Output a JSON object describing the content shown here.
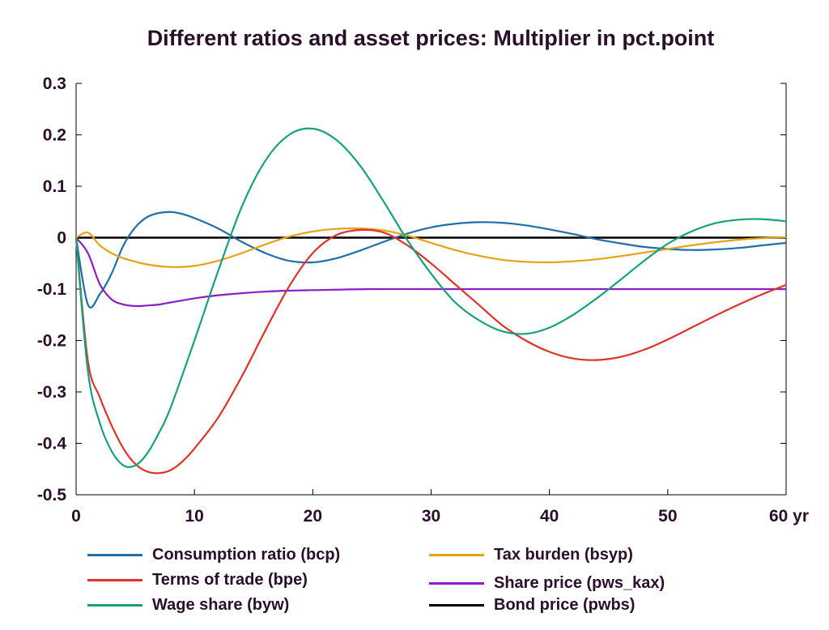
{
  "chart_data": {
    "type": "line",
    "title": "Different ratios and asset prices: Multiplier in pct.point",
    "xlabel": "",
    "ylabel": "",
    "xlim": [
      0,
      60
    ],
    "ylim": [
      -0.5,
      0.3
    ],
    "x_ticks": [
      0,
      10,
      20,
      30,
      40,
      50,
      60
    ],
    "x_tick_labels": [
      "0",
      "10",
      "20",
      "30",
      "40",
      "50",
      "60 yr"
    ],
    "y_ticks": [
      0.3,
      0.2,
      0.1,
      0,
      -0.1,
      -0.2,
      -0.3,
      -0.4,
      -0.5
    ],
    "y_tick_labels": [
      "0.3",
      "0.2",
      "0.1",
      "0",
      "-0.1",
      "-0.2",
      "-0.3",
      "-0.4",
      "-0.5"
    ],
    "grid": false,
    "legend_placement": "bottom",
    "series": [
      {
        "name": "Consumption ratio (bcp)",
        "color": "#1f6fa8",
        "x": [
          0,
          1,
          2,
          3,
          4,
          5,
          6,
          7,
          8,
          9,
          10,
          12,
          14,
          16,
          18,
          20,
          22,
          24,
          26,
          28,
          30,
          32,
          34,
          36,
          38,
          40,
          42,
          44,
          46,
          48,
          50,
          52,
          54,
          56,
          58,
          60
        ],
        "y": [
          0,
          -0.13,
          -0.11,
          -0.07,
          -0.015,
          0.02,
          0.04,
          0.048,
          0.05,
          0.046,
          0.038,
          0.018,
          -0.008,
          -0.03,
          -0.045,
          -0.048,
          -0.04,
          -0.025,
          -0.008,
          0.008,
          0.02,
          0.027,
          0.03,
          0.029,
          0.024,
          0.016,
          0.007,
          -0.003,
          -0.011,
          -0.018,
          -0.022,
          -0.024,
          -0.023,
          -0.02,
          -0.015,
          -0.01
        ]
      },
      {
        "name": "Terms of trade (bpe)",
        "color": "#e03228",
        "x": [
          0,
          1,
          2,
          3,
          4,
          5,
          6,
          7,
          8,
          9,
          10,
          12,
          14,
          16,
          18,
          20,
          22,
          24,
          26,
          28,
          30,
          32,
          34,
          36,
          38,
          40,
          42,
          44,
          46,
          48,
          50,
          52,
          54,
          56,
          58,
          60
        ],
        "y": [
          0,
          -0.24,
          -0.31,
          -0.365,
          -0.41,
          -0.44,
          -0.455,
          -0.458,
          -0.452,
          -0.435,
          -0.41,
          -0.35,
          -0.27,
          -0.18,
          -0.095,
          -0.03,
          0.005,
          0.015,
          0.01,
          -0.015,
          -0.05,
          -0.09,
          -0.13,
          -0.17,
          -0.2,
          -0.222,
          -0.235,
          -0.238,
          -0.232,
          -0.218,
          -0.198,
          -0.175,
          -0.152,
          -0.13,
          -0.11,
          -0.092
        ]
      },
      {
        "name": "Wage share (byw)",
        "color": "#17a080",
        "x": [
          0,
          1,
          2,
          3,
          4,
          5,
          6,
          7,
          8,
          10,
          12,
          14,
          16,
          18,
          20,
          22,
          24,
          26,
          28,
          30,
          32,
          34,
          36,
          38,
          40,
          42,
          44,
          46,
          48,
          50,
          52,
          54,
          56,
          58,
          60
        ],
        "y": [
          0,
          -0.26,
          -0.36,
          -0.415,
          -0.443,
          -0.443,
          -0.42,
          -0.38,
          -0.33,
          -0.2,
          -0.065,
          0.06,
          0.15,
          0.2,
          0.212,
          0.19,
          0.14,
          0.07,
          -0.005,
          -0.07,
          -0.125,
          -0.16,
          -0.182,
          -0.187,
          -0.175,
          -0.15,
          -0.118,
          -0.082,
          -0.045,
          -0.012,
          0.012,
          0.028,
          0.035,
          0.036,
          0.032
        ]
      },
      {
        "name": "Tax burden (bsyp)",
        "color": "#e8a117",
        "x": [
          0,
          1,
          2,
          3,
          4,
          6,
          8,
          10,
          12,
          14,
          16,
          18,
          20,
          22,
          24,
          26,
          28,
          30,
          32,
          34,
          36,
          38,
          40,
          42,
          44,
          46,
          48,
          50,
          52,
          54,
          56,
          58,
          60
        ],
        "y": [
          0,
          0.01,
          -0.015,
          -0.03,
          -0.04,
          -0.052,
          -0.057,
          -0.055,
          -0.045,
          -0.03,
          -0.013,
          0.002,
          0.012,
          0.017,
          0.018,
          0.014,
          0.004,
          -0.01,
          -0.024,
          -0.035,
          -0.043,
          -0.047,
          -0.048,
          -0.046,
          -0.042,
          -0.036,
          -0.029,
          -0.022,
          -0.015,
          -0.009,
          -0.004,
          -0.001,
          0.001
        ]
      },
      {
        "name": "Share price (pws_kax)",
        "color": "#8a1ec8",
        "x": [
          0,
          1,
          2,
          3,
          4,
          5,
          6,
          7,
          8,
          10,
          12,
          14,
          16,
          18,
          20,
          25,
          30,
          35,
          40,
          45,
          50,
          55,
          60
        ],
        "y": [
          0,
          -0.03,
          -0.09,
          -0.12,
          -0.13,
          -0.133,
          -0.132,
          -0.13,
          -0.126,
          -0.118,
          -0.112,
          -0.108,
          -0.105,
          -0.103,
          -0.102,
          -0.1,
          -0.1,
          -0.1,
          -0.1,
          -0.1,
          -0.1,
          -0.1,
          -0.1
        ]
      },
      {
        "name": "Bond price (pwbs)",
        "color": "#000000",
        "x": [
          0,
          60
        ],
        "y": [
          0,
          0
        ]
      }
    ]
  }
}
